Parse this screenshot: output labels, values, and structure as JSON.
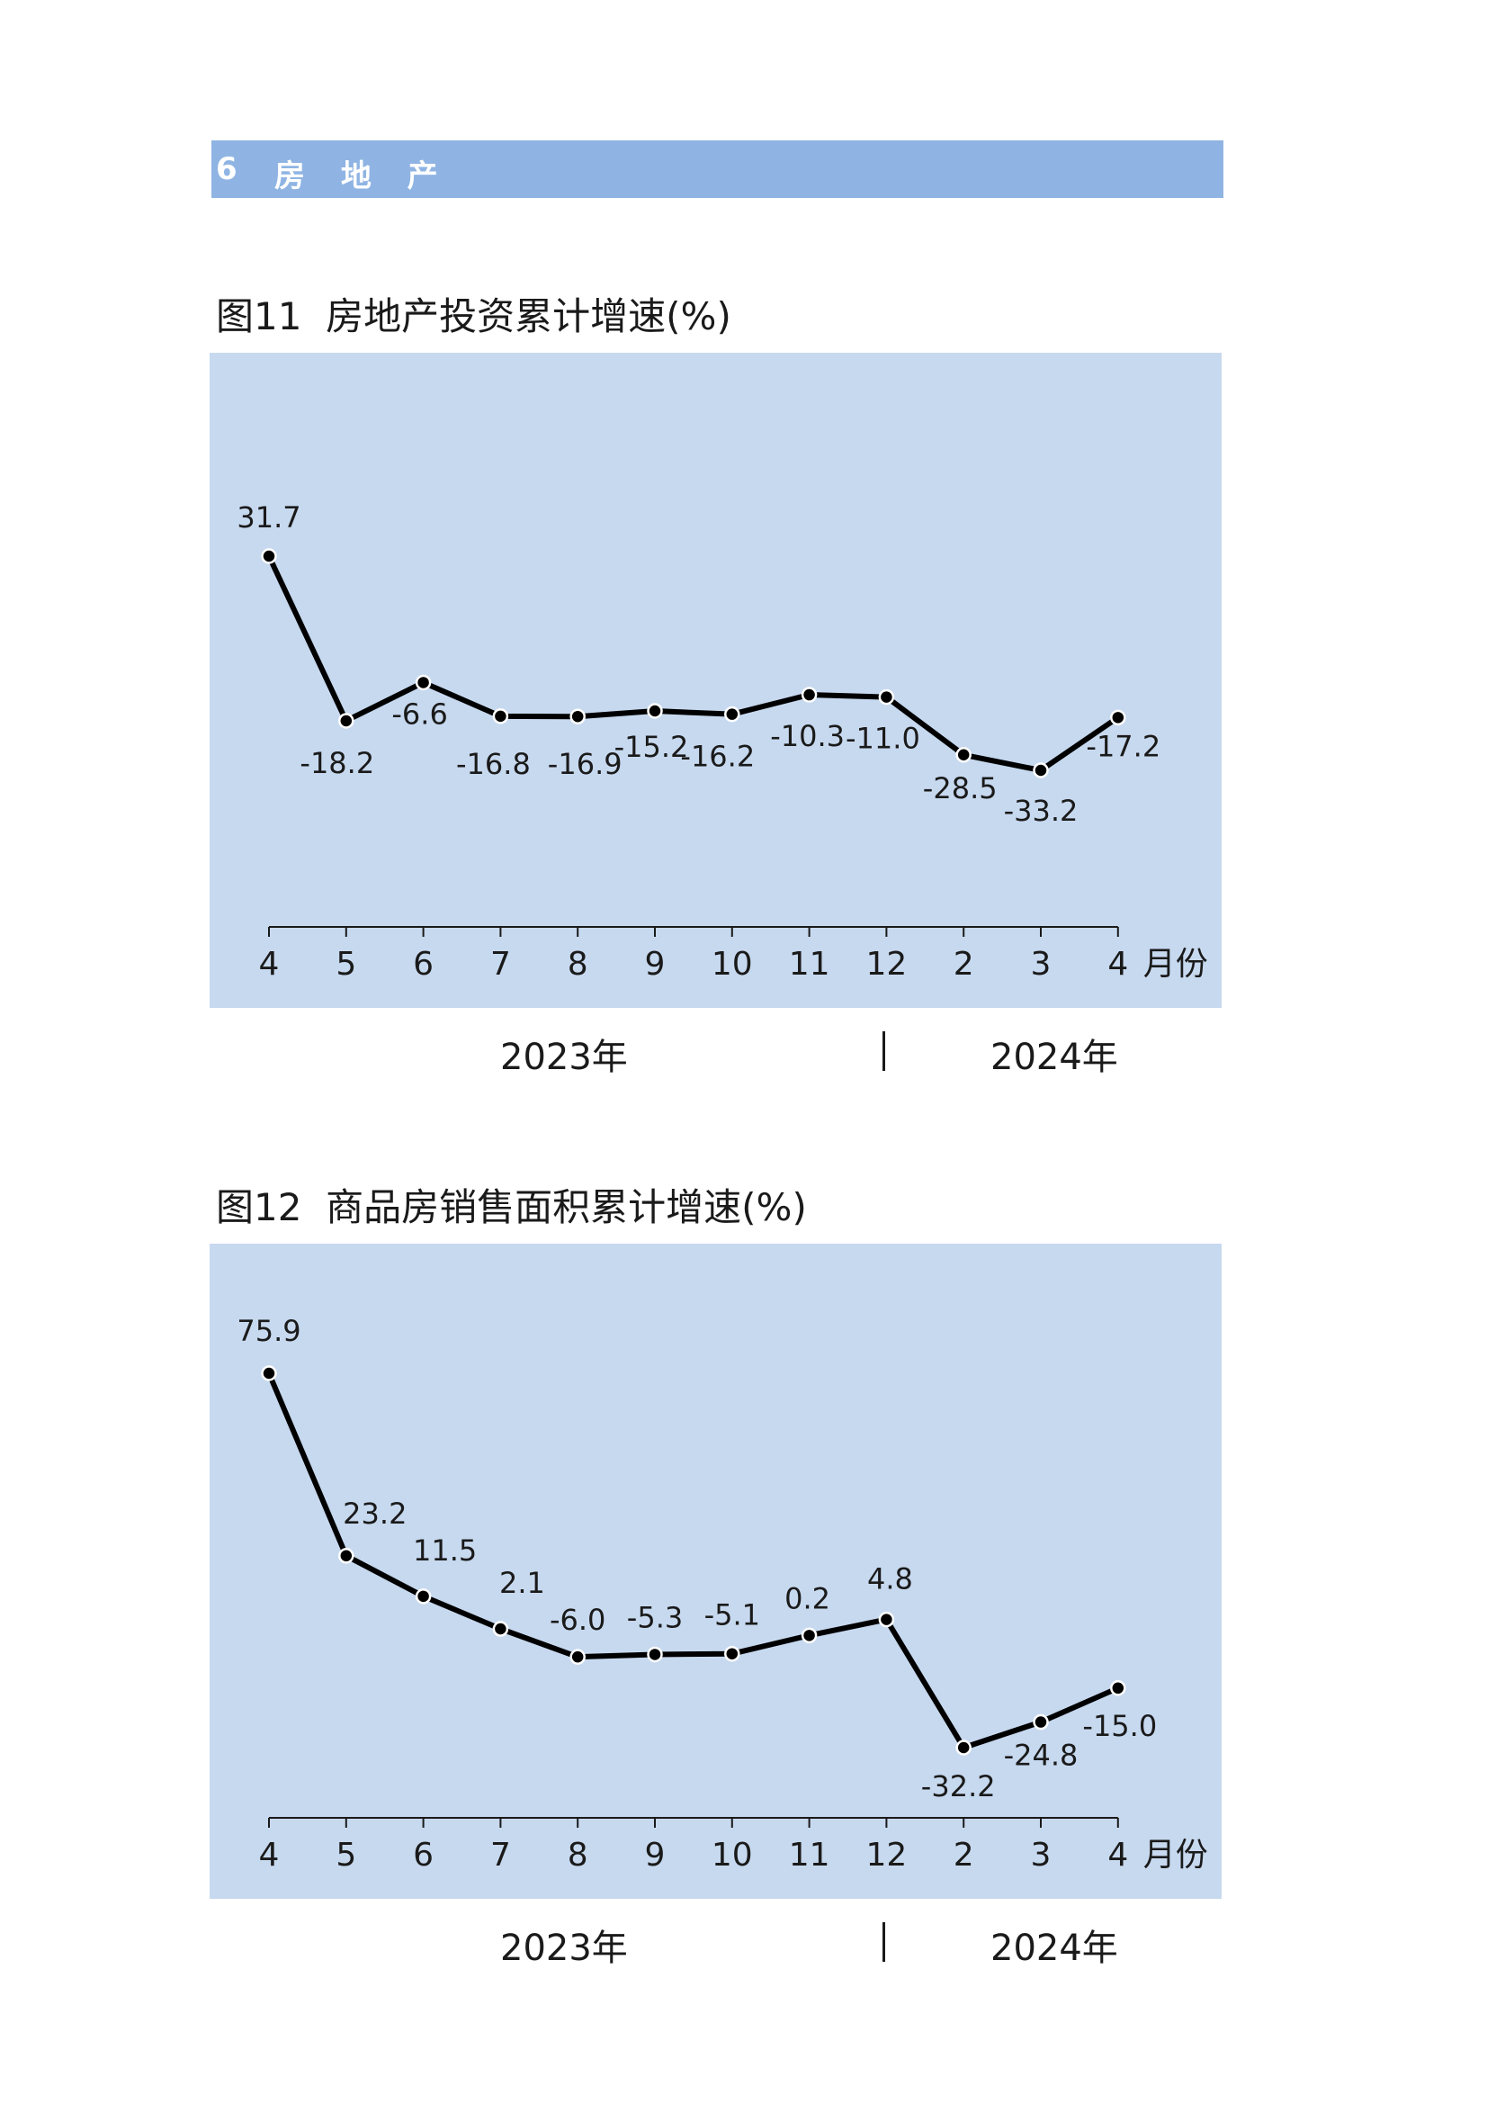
{
  "section": {
    "number": "6",
    "title": "房 地 产"
  },
  "chart_data": [
    {
      "type": "line",
      "title": "图11  房地产投资累计增速(%)",
      "categories": [
        "4",
        "5",
        "6",
        "7",
        "8",
        "9",
        "10",
        "11",
        "12",
        "2",
        "3",
        "4"
      ],
      "unit_label": "月份",
      "years": [
        {
          "label": "2023年"
        },
        {
          "label": "2024年"
        }
      ],
      "values": [
        31.7,
        -18.2,
        -6.6,
        -16.8,
        -16.9,
        -15.2,
        -16.2,
        -10.3,
        -11.0,
        -28.5,
        -33.2,
        -17.2
      ],
      "labels": [
        "31.7",
        "-18.2",
        "-6.6",
        "-16.8",
        "-16.9",
        "-15.2",
        "-16.2",
        "-10.3",
        "-11.0",
        "-28.5",
        "-33.2",
        "-17.2"
      ],
      "line_color": "#000000",
      "marker_fill": "#ffffff",
      "background": "#c7d9ef",
      "grid": false
    },
    {
      "type": "line",
      "title": "图12  商品房销售面积累计增速(%)",
      "categories": [
        "4",
        "5",
        "6",
        "7",
        "8",
        "9",
        "10",
        "11",
        "12",
        "2",
        "3",
        "4"
      ],
      "unit_label": "月份",
      "years": [
        {
          "label": "2023年"
        },
        {
          "label": "2024年"
        }
      ],
      "values": [
        75.9,
        23.2,
        11.5,
        2.1,
        -6.0,
        -5.3,
        -5.1,
        0.2,
        4.8,
        -32.2,
        -24.8,
        -15.0
      ],
      "labels": [
        "75.9",
        "23.2",
        "11.5",
        "2.1",
        "-6.0",
        "-5.3",
        "-5.1",
        "0.2",
        "4.8",
        "-32.2",
        "-24.8",
        "-15.0"
      ],
      "line_color": "#000000",
      "marker_fill": "#ffffff",
      "background": "#c7d9ef",
      "grid": false
    }
  ]
}
